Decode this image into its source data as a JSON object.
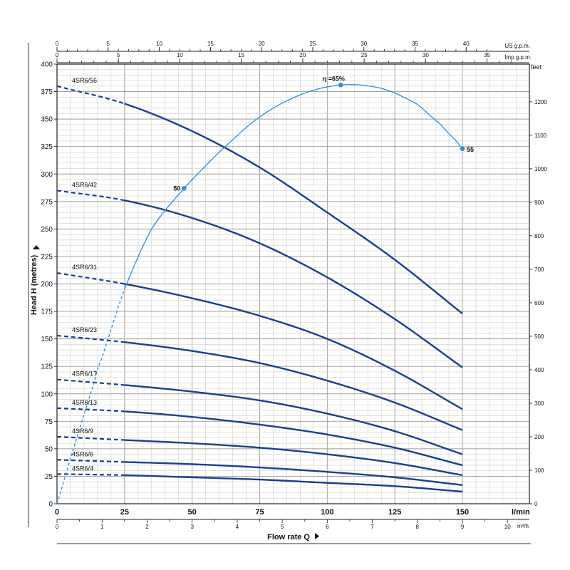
{
  "chart_data": {
    "type": "line",
    "title": "",
    "xlabel": "Flow rate Q",
    "ylabel": "Head H (metres)",
    "xlim": [
      0,
      150
    ],
    "ylim": [
      0,
      400
    ],
    "x_unit_primary": "l/min",
    "x_unit_secondary": "m³/h",
    "top_axis_1_unit": "US g.p.m.",
    "top_axis_2_unit": "Imp g.p.m.",
    "right_axis_unit": "feet",
    "x_ticks": [
      0,
      25,
      50,
      75,
      100,
      125,
      150
    ],
    "y_ticks": [
      0,
      25,
      50,
      75,
      100,
      125,
      150,
      175,
      200,
      225,
      250,
      275,
      300,
      325,
      350,
      375,
      400
    ],
    "m3h_ticks": [
      0,
      1,
      2,
      3,
      4,
      5,
      6,
      7,
      8,
      9,
      10
    ],
    "us_gpm_ticks": [
      0,
      5,
      10,
      15,
      20,
      25,
      30,
      35,
      40
    ],
    "imp_gpm_ticks": [
      0,
      5,
      10,
      15,
      20,
      25,
      30,
      35
    ],
    "feet_ticks": [
      0,
      100,
      200,
      300,
      400,
      500,
      600,
      700,
      800,
      900,
      1000,
      1100,
      1200
    ],
    "grid": true,
    "dashed_until_x": 25,
    "series": [
      {
        "name": "4SR6/56",
        "x": [
          0,
          25,
          50,
          75,
          100,
          125,
          150
        ],
        "values": [
          380,
          364,
          339,
          306,
          265,
          222,
          173
        ]
      },
      {
        "name": "4SR6/42",
        "x": [
          0,
          25,
          50,
          75,
          100,
          125,
          150
        ],
        "values": [
          285,
          276,
          260,
          237,
          206,
          168,
          124
        ]
      },
      {
        "name": "4SR6/31",
        "x": [
          0,
          25,
          50,
          75,
          100,
          125,
          150
        ],
        "values": [
          210,
          200,
          187,
          171,
          150,
          121,
          86
        ]
      },
      {
        "name": "4SR6/23",
        "x": [
          0,
          25,
          50,
          75,
          100,
          125,
          150
        ],
        "values": [
          153,
          147,
          139,
          128,
          112,
          92,
          67
        ]
      },
      {
        "name": "4SR6/17",
        "x": [
          0,
          25,
          50,
          75,
          100,
          125,
          150
        ],
        "values": [
          113,
          108,
          102,
          94,
          82,
          66,
          45
        ]
      },
      {
        "name": "4SR6/13",
        "x": [
          0,
          25,
          50,
          75,
          100,
          125,
          150
        ],
        "values": [
          87,
          84,
          79,
          72,
          63,
          51,
          35
        ]
      },
      {
        "name": "4SR6/9",
        "x": [
          0,
          25,
          50,
          75,
          100,
          125,
          150
        ],
        "values": [
          61,
          58,
          55,
          51,
          45,
          37,
          26
        ]
      },
      {
        "name": "4SR6/6",
        "x": [
          0,
          25,
          50,
          75,
          100,
          125,
          150
        ],
        "values": [
          40,
          38,
          36,
          33,
          29,
          24,
          17
        ]
      },
      {
        "name": "4SR6/4",
        "x": [
          0,
          25,
          50,
          75,
          100,
          125,
          150
        ],
        "values": [
          27,
          26,
          24,
          22,
          19,
          16,
          11
        ]
      }
    ],
    "efficiency_curve": {
      "x": [
        0,
        8,
        15,
        25,
        35,
        47,
        60,
        75,
        90,
        105,
        120,
        133,
        142,
        148,
        150
      ],
      "values": [
        0,
        65,
        122,
        195,
        250,
        287,
        320,
        352,
        372,
        381,
        378,
        364,
        345,
        330,
        323
      ],
      "dashed_until_x": 25
    },
    "annotations": [
      {
        "text": "50",
        "x": 47,
        "y": 287
      },
      {
        "text": "η =65%",
        "x": 105,
        "y": 381
      },
      {
        "text": "55",
        "x": 150,
        "y": 323
      }
    ]
  }
}
